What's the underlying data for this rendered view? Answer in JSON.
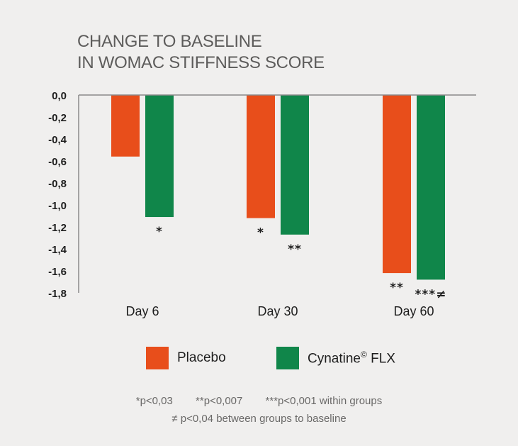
{
  "chart_data": {
    "type": "bar",
    "title_lines": [
      "CHANGE TO BASELINE",
      "IN WOMAC STIFFNESS SCORE"
    ],
    "categories": [
      "Day 6",
      "Day 30",
      "Day 60"
    ],
    "series": [
      {
        "name": "Placebo",
        "color": "#e84e1b",
        "values": [
          -0.56,
          -1.12,
          -1.62
        ],
        "markers": [
          "",
          "*",
          "**"
        ]
      },
      {
        "name": "Cynatine© FLX",
        "color": "#10864a",
        "values": [
          -1.11,
          -1.27,
          -1.68
        ],
        "markers": [
          "*",
          "**",
          "***≠"
        ]
      }
    ],
    "ylim": [
      -1.8,
      0
    ],
    "yticks": [
      "0,0",
      "-0,2",
      "-0,4",
      "-0,6",
      "-0,8",
      "-1,0",
      "-1,2",
      "-1,4",
      "-1,6",
      "-1,8"
    ],
    "ytick_values": [
      0,
      -0.2,
      -0.4,
      -0.6,
      -0.8,
      -1.0,
      -1.2,
      -1.4,
      -1.6,
      -1.8
    ],
    "legend_position": "bottom",
    "grid": false
  },
  "legend": {
    "placebo_label": "Placebo",
    "cynatine_label": "Cynatine",
    "cynatine_sup": "©",
    "cynatine_suffix": " FLX"
  },
  "footnotes": {
    "fn1": "*p<0,03",
    "fn2": "**p<0,007",
    "fn3": "***p<0,001 within groups",
    "fn4": "≠ p<0,04 between groups to baseline"
  }
}
